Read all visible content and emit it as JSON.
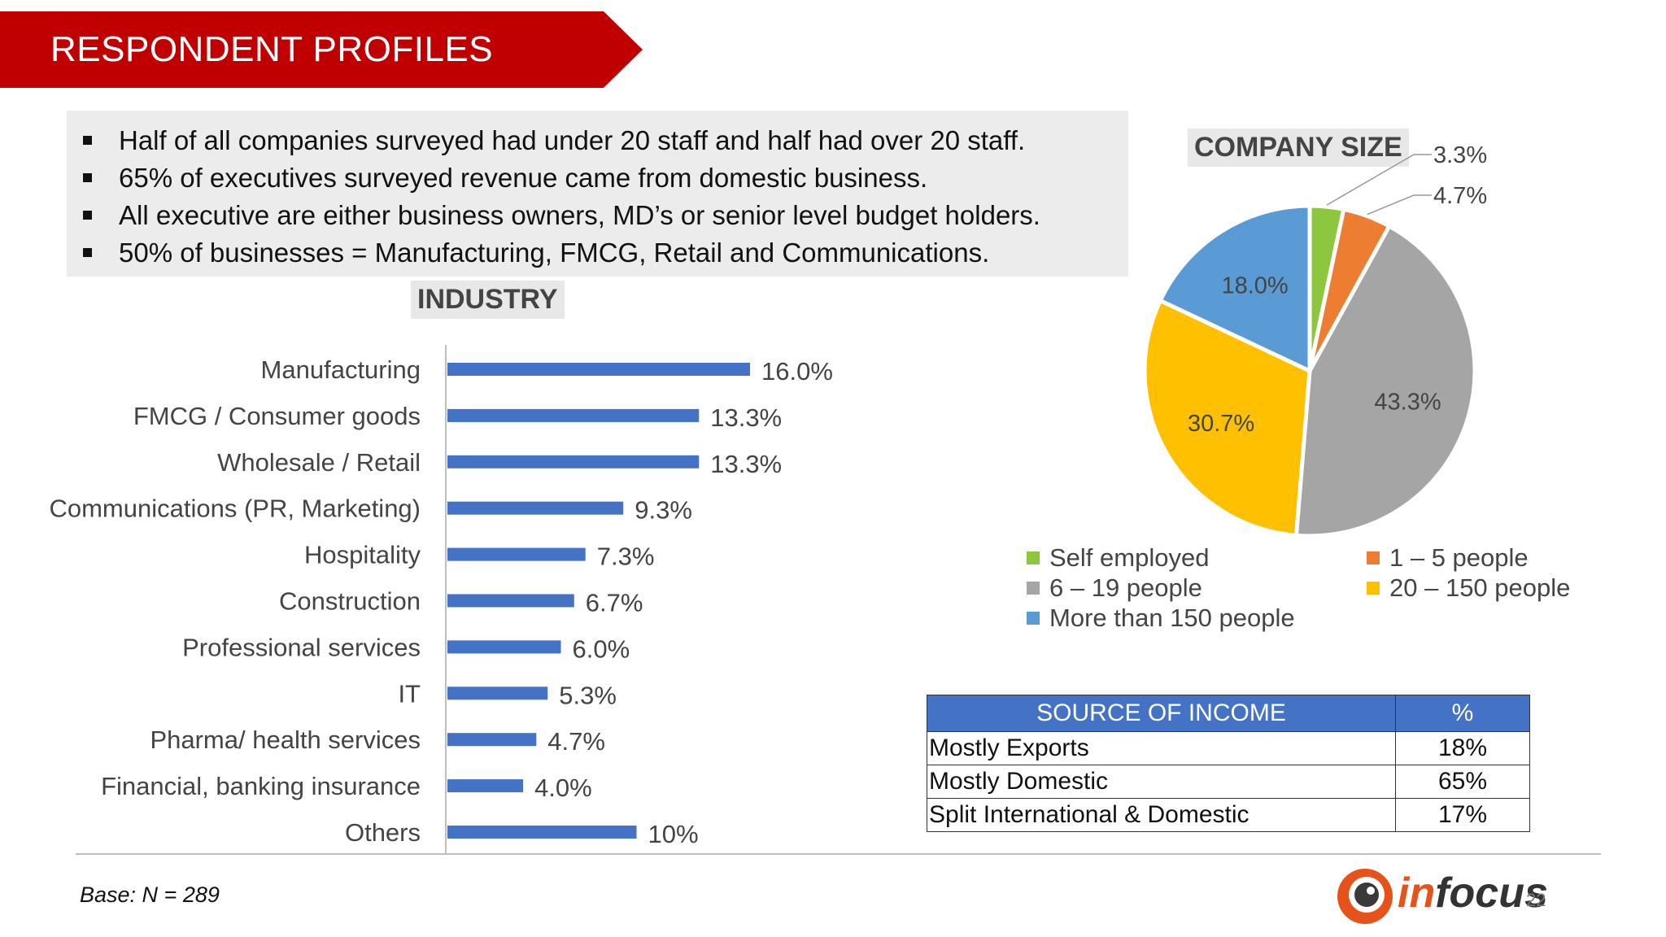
{
  "banner": {
    "title": "RESPONDENT PROFILES",
    "color": "#c00000"
  },
  "summary": {
    "bullets": [
      "Half of all companies surveyed had under 20 staff and half had over 20 staff.",
      "65% of executives surveyed  revenue came from domestic business.",
      "All executive are either business owners, MD’s or senior level budget holders.",
      "50% of businesses =  Manufacturing, FMCG, Retail and Communications."
    ]
  },
  "chart_data": [
    {
      "type": "bar",
      "orientation": "horizontal",
      "title": "INDUSTRY",
      "categories": [
        "Manufacturing",
        "FMCG / Consumer goods",
        "Wholesale / Retail",
        "Communications (PR, Marketing)",
        "Hospitality",
        "Construction",
        "Professional services",
        "IT",
        "Pharma/ health services",
        "Financial, banking insurance",
        "Others"
      ],
      "values": [
        16.0,
        13.3,
        13.3,
        9.3,
        7.3,
        6.7,
        6.0,
        5.3,
        4.7,
        4.0,
        10
      ],
      "data_labels": [
        "16.0%",
        "13.3%",
        "13.3%",
        "9.3%",
        "7.3%",
        "6.7%",
        "6.0%",
        "5.3%",
        "4.7%",
        "4.0%",
        "10%"
      ],
      "color": "#4472c4",
      "xlim": [
        0,
        16
      ]
    },
    {
      "type": "pie",
      "title": "COMPANY SIZE",
      "categories": [
        "Self employed",
        "1 – 5 people",
        "6 – 19 people",
        "20 – 150 people",
        "More than 150 people"
      ],
      "values": [
        3.3,
        4.7,
        43.3,
        30.7,
        18.0
      ],
      "data_labels": [
        "3.3%",
        "4.7%",
        "43.3%",
        "30.7%",
        "18.0%"
      ],
      "colors": [
        "#8dc63f",
        "#ed7d31",
        "#a5a5a5",
        "#ffc000",
        "#5b9bd5"
      ],
      "legend": "bottom"
    }
  ],
  "income_table": {
    "headers": [
      "SOURCE OF INCOME",
      "%"
    ],
    "rows": [
      [
        "Mostly Exports",
        "18%"
      ],
      [
        "Mostly Domestic",
        "65%"
      ],
      [
        "Split International &  Domestic",
        "17%"
      ]
    ]
  },
  "footer": {
    "base": "Base: N = 289",
    "logo_in": "in",
    "logo_focus": "focus",
    "page_number": "22"
  }
}
